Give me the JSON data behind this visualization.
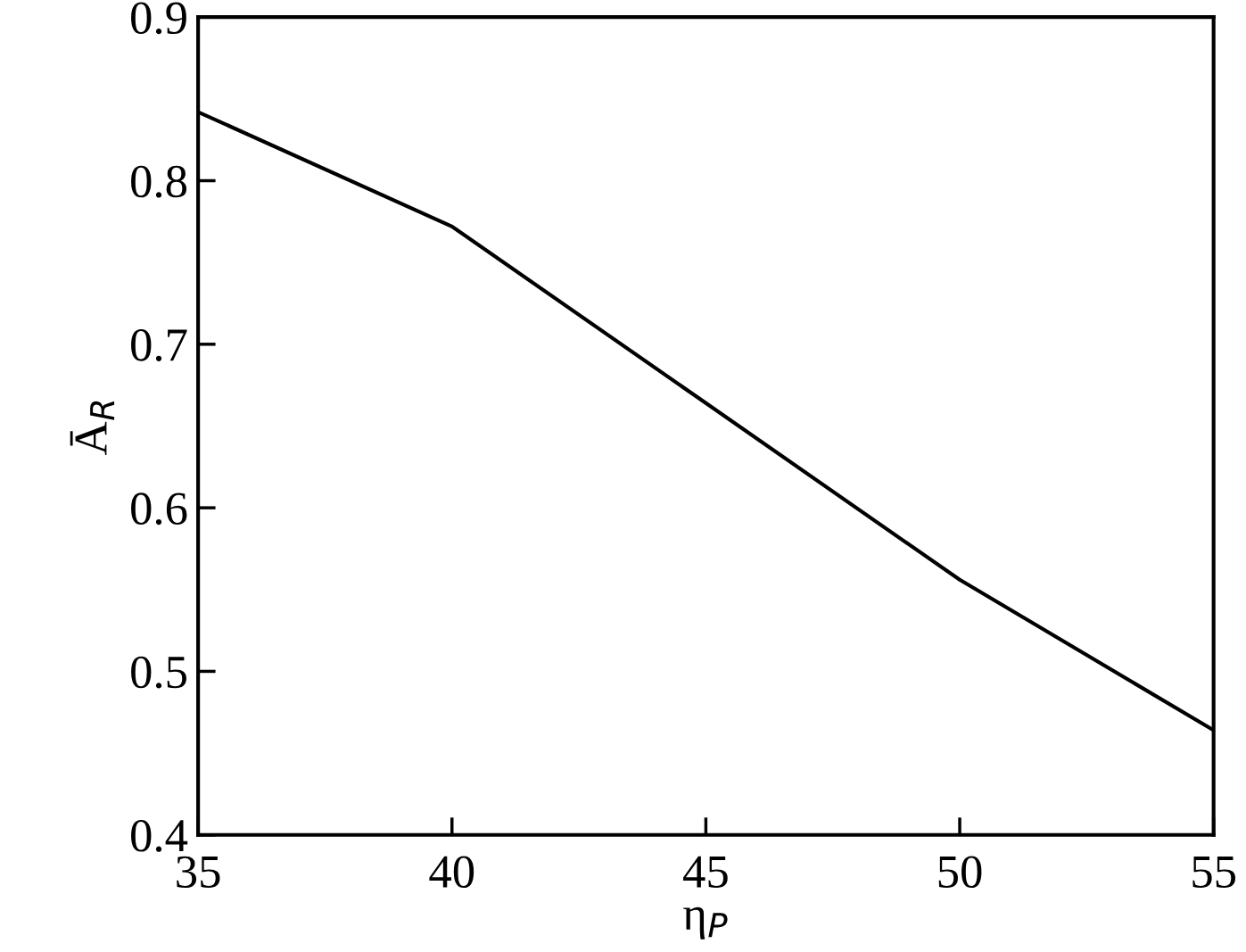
{
  "chart_data": {
    "type": "line",
    "xlabel": "η$_{P}$",
    "ylabel": "Ā$_{R}$",
    "x": [
      35,
      40,
      45,
      50,
      55
    ],
    "series": [
      {
        "color": "#000000",
        "values": [
          0.842,
          0.772,
          0.664,
          0.556,
          0.464
        ]
      }
    ],
    "xlim": [
      35,
      55
    ],
    "xticks": [
      35,
      40,
      45,
      50,
      55
    ],
    "ylim": [
      0.4,
      0.9
    ],
    "yticks": [
      0.4,
      0.5,
      0.6,
      0.7,
      0.8,
      0.9
    ],
    "grid": false,
    "marker": "none",
    "line_style": "solid"
  }
}
